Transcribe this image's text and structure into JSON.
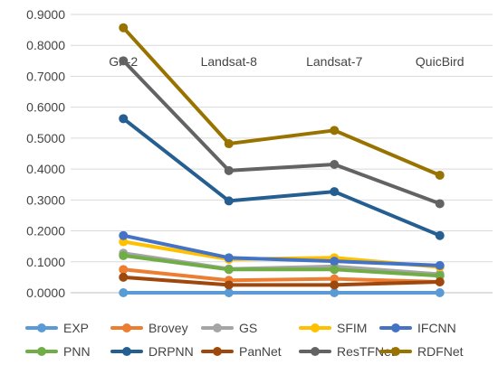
{
  "chart_data": {
    "type": "line",
    "title": "",
    "xlabel": "",
    "ylabel": "",
    "categories": [
      "GF-2",
      "Landsat-8",
      "Landsat-7",
      "QuicBird"
    ],
    "ylim": [
      0,
      0.9
    ],
    "yticks": [
      "0.0000",
      "0.1000",
      "0.2000",
      "0.3000",
      "0.4000",
      "0.5000",
      "0.6000",
      "0.7000",
      "0.8000",
      "0.9000"
    ],
    "grid": true,
    "legend_position": "bottom",
    "series": [
      {
        "name": "EXP",
        "color": "#5B9BD5",
        "values": [
          0.0,
          0.0,
          0.0,
          0.0
        ]
      },
      {
        "name": "Brovey",
        "color": "#ED7D31",
        "values": [
          0.075,
          0.04,
          0.045,
          0.035
        ]
      },
      {
        "name": "GS",
        "color": "#A5A5A5",
        "values": [
          0.128,
          0.077,
          0.085,
          0.06
        ]
      },
      {
        "name": "SFIM",
        "color": "#FFC000",
        "values": [
          0.165,
          0.108,
          0.113,
          0.083
        ]
      },
      {
        "name": "IFCNN",
        "color": "#4472C4",
        "values": [
          0.185,
          0.113,
          0.102,
          0.088
        ]
      },
      {
        "name": "PNN",
        "color": "#70AD47",
        "values": [
          0.12,
          0.075,
          0.075,
          0.055
        ]
      },
      {
        "name": "DRPNN",
        "color": "#255E91",
        "values": [
          0.563,
          0.297,
          0.327,
          0.185
        ]
      },
      {
        "name": "PanNet",
        "color": "#9E480E",
        "values": [
          0.05,
          0.025,
          0.025,
          0.035
        ]
      },
      {
        "name": "ResTFNet",
        "color": "#636363",
        "values": [
          0.75,
          0.395,
          0.415,
          0.288
        ]
      },
      {
        "name": "RDFNet",
        "color": "#997300",
        "values": [
          0.857,
          0.482,
          0.525,
          0.38
        ]
      }
    ]
  }
}
